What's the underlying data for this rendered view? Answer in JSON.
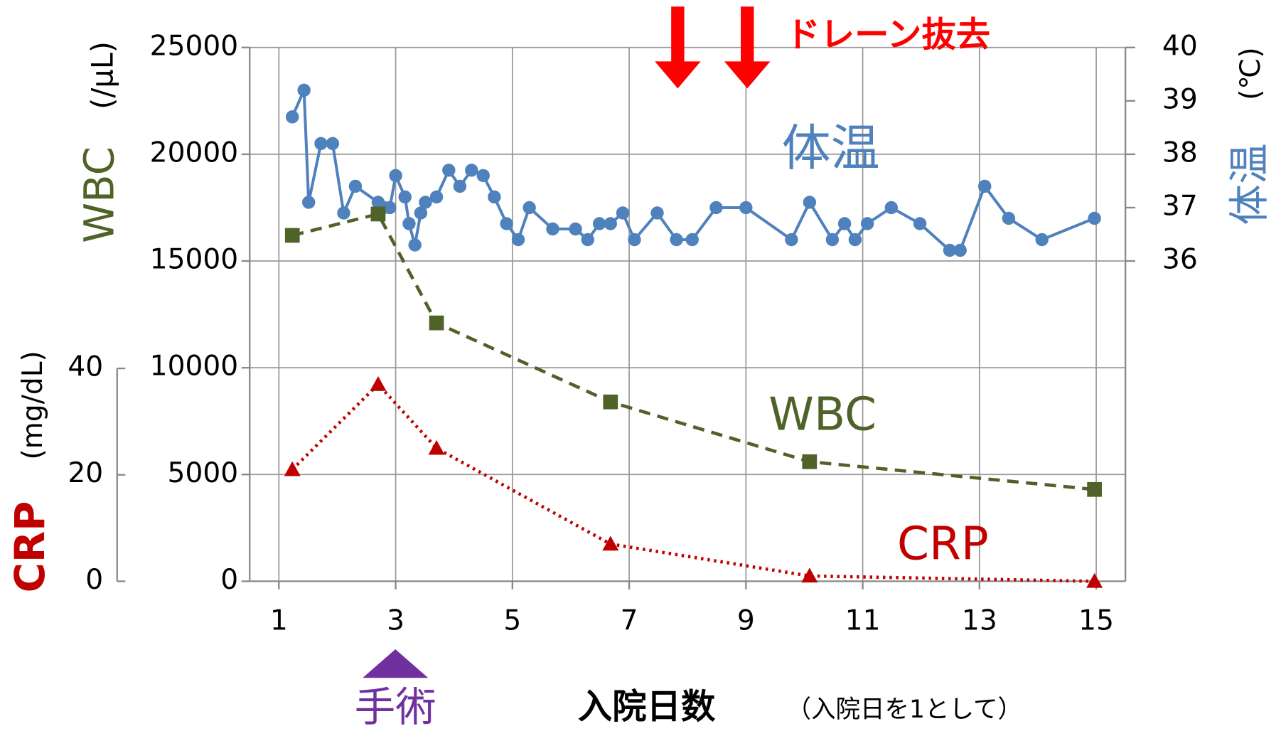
{
  "chart_data": {
    "type": "line",
    "ylabel": "WBC",
    "ylabel_unit": "(/μL)",
    "y2label": "体温",
    "y2label_unit": "(℃)",
    "y3label": "CRP",
    "y3label_unit": "(mg/dL)",
    "xlabel": "入院日数",
    "xlabel_note": "（入院日を1として）",
    "annotations": {
      "drain": "ドレーン抜去",
      "surgery": "手術"
    },
    "xlim": [
      0.5,
      15.5
    ],
    "xticks": [
      1,
      3,
      5,
      7,
      9,
      11,
      13,
      15
    ],
    "ylim": [
      0,
      25000
    ],
    "yticks": [
      0,
      5000,
      10000,
      15000,
      20000,
      25000
    ],
    "y2lim": [
      30,
      40
    ],
    "y2ticks": [
      36,
      37,
      38,
      39,
      40
    ],
    "y3lim": [
      0,
      40
    ],
    "y3ticks": [
      0,
      20,
      40
    ],
    "grid": true,
    "series": [
      {
        "name": "体温",
        "color": "#4f81bd",
        "axis": "y2",
        "marker": "circle",
        "dash": "solid",
        "x": [
          1.23,
          1.43,
          1.51,
          1.72,
          1.92,
          2.11,
          2.31,
          2.7,
          2.8,
          2.9,
          3.0,
          3.16,
          3.23,
          3.33,
          3.43,
          3.51,
          3.7,
          3.91,
          4.1,
          4.3,
          4.5,
          4.69,
          4.9,
          5.1,
          5.29,
          5.69,
          6.08,
          6.29,
          6.49,
          6.68,
          6.89,
          7.09,
          7.48,
          7.81,
          8.08,
          8.49,
          9.0,
          9.78,
          10.09,
          10.48,
          10.69,
          10.87,
          11.08,
          11.49,
          11.98,
          12.49,
          12.67,
          13.09,
          13.5,
          14.07,
          14.97
        ],
        "values": [
          38.7,
          39.2,
          37.1,
          38.2,
          38.2,
          36.9,
          37.4,
          37.1,
          37.0,
          37.0,
          37.6,
          37.2,
          36.7,
          36.3,
          36.9,
          37.1,
          37.2,
          37.7,
          37.4,
          37.7,
          37.6,
          37.2,
          36.7,
          36.4,
          37.0,
          36.6,
          36.6,
          36.4,
          36.7,
          36.7,
          36.9,
          36.4,
          36.9,
          36.4,
          36.4,
          37.0,
          37.0,
          36.4,
          37.1,
          36.4,
          36.7,
          36.4,
          36.7,
          37.0,
          36.7,
          36.2,
          36.2,
          37.4,
          36.8,
          36.4,
          36.8
        ]
      },
      {
        "name": "WBC",
        "color": "#4f6228",
        "axis": "y",
        "marker": "square",
        "dash": "dashed",
        "x": [
          1.23,
          2.7,
          3.7,
          6.68,
          10.09,
          14.97
        ],
        "values": [
          16200,
          17200,
          12100,
          8400,
          5600,
          4300
        ]
      },
      {
        "name": "CRP",
        "color": "#c00000",
        "axis": "y3",
        "marker": "triangle",
        "dash": "dotted",
        "x": [
          1.23,
          2.7,
          3.7,
          6.68,
          10.09,
          14.97
        ],
        "values": [
          21,
          37,
          25,
          7,
          1,
          0
        ]
      }
    ]
  }
}
